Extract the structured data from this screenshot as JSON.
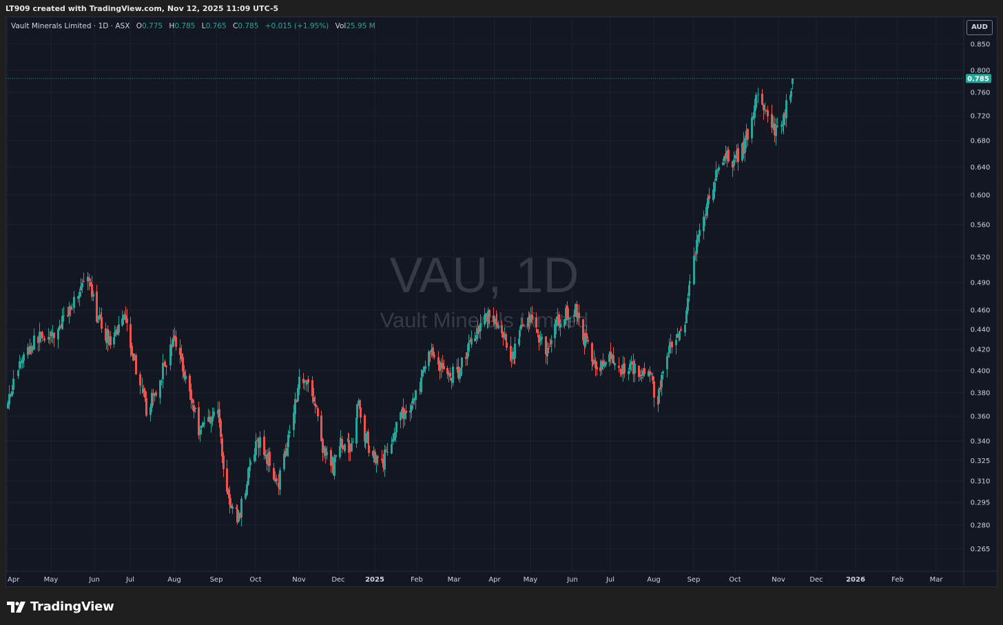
{
  "banner": {
    "text": "LT909 created with TradingView.com, Nov 12, 2025 11:09 UTC-5"
  },
  "legend": {
    "name": "Vault Minerals Limited · 1D · ASX",
    "open_label": "O",
    "open": "0.775",
    "high_label": "H",
    "high": "0.785",
    "low_label": "L",
    "low": "0.765",
    "close_label": "C",
    "close": "0.785",
    "change": "+0.015 (+1.95%)",
    "vol_label": "Vol",
    "vol": "25.95 M"
  },
  "currency": "AUD",
  "watermark": {
    "symbol": "VAU, 1D",
    "name": "Vault Minerals Limited"
  },
  "brand": {
    "name": "TradingView"
  },
  "colors": {
    "up": "#26a69a",
    "down": "#ef5350",
    "background": "#131722",
    "grid": "#1e222d",
    "text": "#d1d4dc",
    "last_price": "#26a69a"
  },
  "chart_data": {
    "type": "candlestick",
    "symbol": "VAU",
    "interval": "1D",
    "exchange": "ASX",
    "price_scale": "log",
    "ylim": [
      0.255,
      0.87
    ],
    "xlim": [
      "2024-03-28",
      "2026-03-31"
    ],
    "y_ticks": [
      "0.850",
      "0.800",
      "0.760",
      "0.720",
      "0.680",
      "0.640",
      "0.600",
      "0.560",
      "0.520",
      "0.490",
      "0.460",
      "0.440",
      "0.420",
      "0.400",
      "0.380",
      "0.360",
      "0.340",
      "0.325",
      "0.310",
      "0.295",
      "0.280",
      "0.265"
    ],
    "x_ticks": [
      {
        "label": "Apr",
        "date": "2024-04-01"
      },
      {
        "label": "May",
        "date": "2024-05-01"
      },
      {
        "label": "Jun",
        "date": "2024-06-01"
      },
      {
        "label": "Jul",
        "date": "2024-07-01"
      },
      {
        "label": "Aug",
        "date": "2024-08-01"
      },
      {
        "label": "Sep",
        "date": "2024-09-01"
      },
      {
        "label": "Oct",
        "date": "2024-10-01"
      },
      {
        "label": "Nov",
        "date": "2024-11-01"
      },
      {
        "label": "Dec",
        "date": "2024-12-01"
      },
      {
        "label": "2025",
        "date": "2025-01-01"
      },
      {
        "label": "Feb",
        "date": "2025-02-01"
      },
      {
        "label": "Mar",
        "date": "2025-03-01"
      },
      {
        "label": "Apr",
        "date": "2025-04-01"
      },
      {
        "label": "May",
        "date": "2025-05-01"
      },
      {
        "label": "Jun",
        "date": "2025-06-01"
      },
      {
        "label": "Jul",
        "date": "2025-07-01"
      },
      {
        "label": "Aug",
        "date": "2025-08-01"
      },
      {
        "label": "Sep",
        "date": "2025-09-01"
      },
      {
        "label": "Oct",
        "date": "2025-10-01"
      },
      {
        "label": "Nov",
        "date": "2025-11-01"
      },
      {
        "label": "Dec",
        "date": "2025-12-01"
      },
      {
        "label": "2026",
        "date": "2026-01-01"
      },
      {
        "label": "Feb",
        "date": "2026-02-01"
      },
      {
        "label": "Mar",
        "date": "2026-03-01"
      }
    ],
    "last_price": {
      "value": 0.785,
      "label": "0.785"
    },
    "close_path": [
      [
        "2024-03-28",
        0.365
      ],
      [
        "2024-04-04",
        0.385
      ],
      [
        "2024-04-10",
        0.41
      ],
      [
        "2024-04-18",
        0.425
      ],
      [
        "2024-04-24",
        0.435
      ],
      [
        "2024-05-01",
        0.43
      ],
      [
        "2024-05-08",
        0.445
      ],
      [
        "2024-05-15",
        0.465
      ],
      [
        "2024-05-22",
        0.485
      ],
      [
        "2024-05-27",
        0.49
      ],
      [
        "2024-06-03",
        0.455
      ],
      [
        "2024-06-10",
        0.435
      ],
      [
        "2024-06-17",
        0.425
      ],
      [
        "2024-06-21",
        0.445
      ],
      [
        "2024-06-26",
        0.46
      ],
      [
        "2024-07-03",
        0.415
      ],
      [
        "2024-07-08",
        0.385
      ],
      [
        "2024-07-12",
        0.365
      ],
      [
        "2024-07-19",
        0.38
      ],
      [
        "2024-07-26",
        0.41
      ],
      [
        "2024-08-01",
        0.43
      ],
      [
        "2024-08-07",
        0.405
      ],
      [
        "2024-08-13",
        0.375
      ],
      [
        "2024-08-19",
        0.35
      ],
      [
        "2024-08-27",
        0.36
      ],
      [
        "2024-09-02",
        0.365
      ],
      [
        "2024-09-06",
        0.32
      ],
      [
        "2024-09-12",
        0.29
      ],
      [
        "2024-09-18",
        0.285
      ],
      [
        "2024-09-26",
        0.32
      ],
      [
        "2024-10-03",
        0.34
      ],
      [
        "2024-10-10",
        0.325
      ],
      [
        "2024-10-17",
        0.31
      ],
      [
        "2024-10-24",
        0.345
      ],
      [
        "2024-11-01",
        0.39
      ],
      [
        "2024-11-06",
        0.395
      ],
      [
        "2024-11-13",
        0.37
      ],
      [
        "2024-11-20",
        0.33
      ],
      [
        "2024-11-27",
        0.32
      ],
      [
        "2024-12-04",
        0.34
      ],
      [
        "2024-12-11",
        0.335
      ],
      [
        "2024-12-18",
        0.37
      ],
      [
        "2024-12-23",
        0.345
      ],
      [
        "2024-12-30",
        0.33
      ],
      [
        "2025-01-07",
        0.325
      ],
      [
        "2025-01-14",
        0.345
      ],
      [
        "2025-01-21",
        0.36
      ],
      [
        "2025-01-28",
        0.37
      ],
      [
        "2025-02-04",
        0.39
      ],
      [
        "2025-02-11",
        0.42
      ],
      [
        "2025-02-18",
        0.405
      ],
      [
        "2025-02-25",
        0.395
      ],
      [
        "2025-03-04",
        0.4
      ],
      [
        "2025-03-11",
        0.42
      ],
      [
        "2025-03-18",
        0.44
      ],
      [
        "2025-03-25",
        0.455
      ],
      [
        "2025-04-01",
        0.45
      ],
      [
        "2025-04-08",
        0.43
      ],
      [
        "2025-04-14",
        0.41
      ],
      [
        "2025-04-22",
        0.435
      ],
      [
        "2025-04-29",
        0.455
      ],
      [
        "2025-05-06",
        0.435
      ],
      [
        "2025-05-13",
        0.42
      ],
      [
        "2025-05-20",
        0.445
      ],
      [
        "2025-05-27",
        0.455
      ],
      [
        "2025-06-03",
        0.46
      ],
      [
        "2025-06-10",
        0.43
      ],
      [
        "2025-06-17",
        0.41
      ],
      [
        "2025-06-24",
        0.405
      ],
      [
        "2025-07-01",
        0.41
      ],
      [
        "2025-07-08",
        0.4
      ],
      [
        "2025-07-15",
        0.405
      ],
      [
        "2025-07-22",
        0.4
      ],
      [
        "2025-07-29",
        0.395
      ],
      [
        "2025-08-04",
        0.37
      ],
      [
        "2025-08-08",
        0.4
      ],
      [
        "2025-08-14",
        0.42
      ],
      [
        "2025-08-20",
        0.43
      ],
      [
        "2025-08-25",
        0.44
      ],
      [
        "2025-08-28",
        0.48
      ],
      [
        "2025-09-03",
        0.535
      ],
      [
        "2025-09-09",
        0.575
      ],
      [
        "2025-09-15",
        0.615
      ],
      [
        "2025-09-22",
        0.655
      ],
      [
        "2025-09-29",
        0.65
      ],
      [
        "2025-10-06",
        0.665
      ],
      [
        "2025-10-13",
        0.71
      ],
      [
        "2025-10-17",
        0.76
      ],
      [
        "2025-10-21",
        0.735
      ],
      [
        "2025-10-27",
        0.695
      ],
      [
        "2025-11-03",
        0.705
      ],
      [
        "2025-11-07",
        0.735
      ],
      [
        "2025-11-12",
        0.785
      ]
    ]
  }
}
